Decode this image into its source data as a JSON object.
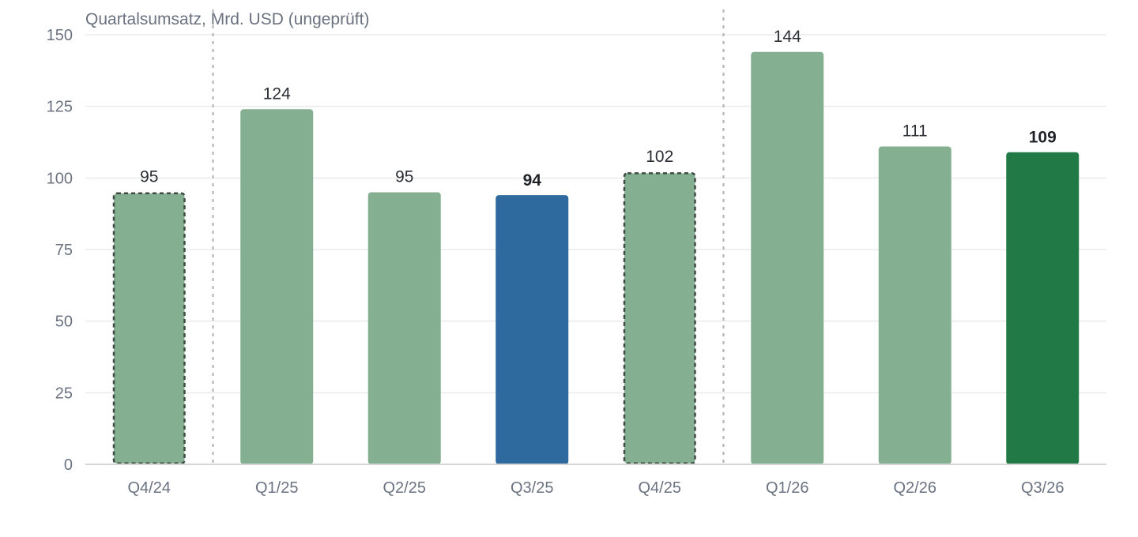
{
  "chart_data": {
    "type": "bar",
    "ylabel": "Quartalsumsatz, Mrd. USD (ungeprüft)",
    "categories": [
      "Q4/24",
      "Q1/25",
      "Q2/25",
      "Q3/25",
      "Q4/25",
      "Q1/26",
      "Q2/26",
      "Q3/26"
    ],
    "values": [
      95,
      124,
      95,
      94,
      102,
      144,
      111,
      109
    ],
    "value_labels": [
      "95",
      "124",
      "95",
      "94",
      "102",
      "144",
      "111",
      "109"
    ],
    "ylim": [
      0,
      150
    ],
    "yticks": [
      0,
      25,
      50,
      75,
      100,
      125,
      150
    ],
    "grid": true,
    "bar_colors": [
      "#84af90",
      "#84af90",
      "#84af90",
      "#2e6a9e",
      "#84af90",
      "#84af90",
      "#84af90",
      "#217a45"
    ],
    "bar_style": [
      "dashed-outline",
      "solid",
      "solid",
      "solid",
      "dashed-outline",
      "solid",
      "solid",
      "solid"
    ],
    "bold_value_labels": [
      false,
      false,
      false,
      true,
      false,
      false,
      false,
      true
    ],
    "year_dividers_after": [
      "Q4/24",
      "Q4/25"
    ]
  }
}
